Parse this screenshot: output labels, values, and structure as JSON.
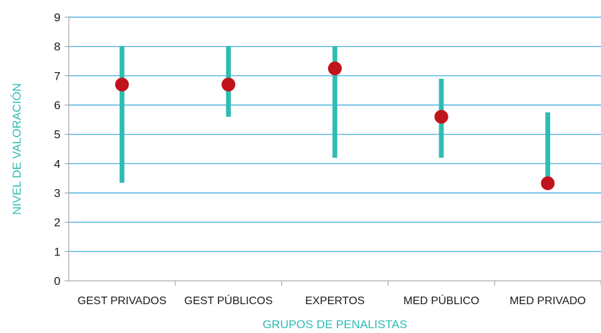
{
  "chart_data": {
    "type": "range-dot",
    "title": "",
    "xlabel": "GRUPOS DE PENALISTAS",
    "ylabel": "NIVEL DE VALORACIÓN",
    "ylim": [
      0,
      9
    ],
    "yticks": [
      0,
      1,
      2,
      3,
      4,
      5,
      6,
      7,
      8,
      9
    ],
    "grid": true,
    "categories": [
      "GEST PRIVADOS",
      "GEST PÚBLICOS",
      "EXPERTOS",
      "MED PÚBLICO",
      "MED PRIVADO"
    ],
    "range_low": [
      3.35,
      5.6,
      4.2,
      4.2,
      3.4
    ],
    "range_high": [
      8.0,
      8.0,
      8.0,
      6.9,
      5.75
    ],
    "values": [
      6.7,
      6.7,
      7.25,
      5.6,
      3.33
    ],
    "colors": {
      "range": "#2ebcb4",
      "point": "#c0141c",
      "grid": "#2fa4dc",
      "axis_title": "#2ebcb4"
    }
  }
}
